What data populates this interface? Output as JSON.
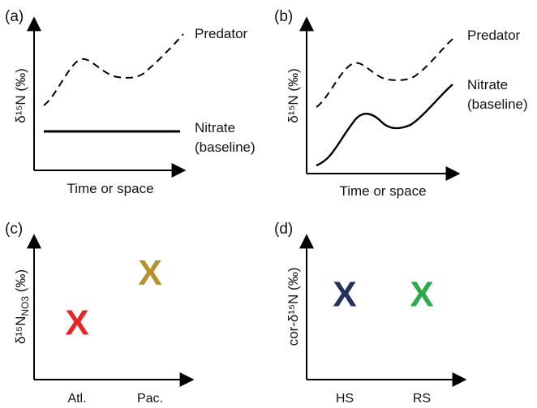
{
  "panels": {
    "a": {
      "label": "(a)",
      "ylabel": "δ¹⁵N (‰)",
      "xlabel": "Time or space",
      "curve_labels": {
        "predator": "Predator",
        "nitrate_line1": "Nitrate",
        "nitrate_line2": "(baseline)"
      }
    },
    "b": {
      "label": "(b)",
      "ylabel": "δ¹⁵N (‰)",
      "xlabel": "Time or space",
      "curve_labels": {
        "predator": "Predator",
        "nitrate_line1": "Nitrate",
        "nitrate_line2": "(baseline)"
      }
    },
    "c": {
      "label": "(c)",
      "ylabel_main": "δ¹⁵N",
      "ylabel_sub": "NO3",
      "ylabel_unit": " (‰)",
      "categories": [
        "Atl.",
        "Pac."
      ],
      "marker": "X"
    },
    "d": {
      "label": "(d)",
      "ylabel": "cor-δ¹⁵N (‰)",
      "categories": [
        "HS",
        "RS"
      ],
      "marker": "X"
    }
  },
  "chart_data": [
    {
      "type": "scatter",
      "panel": "c",
      "categories": [
        "Atl.",
        "Pac."
      ],
      "values": [
        0.4,
        0.75
      ],
      "colors": [
        "#e8262a",
        "#b8902a"
      ],
      "marker": "X"
    },
    {
      "type": "scatter",
      "panel": "d",
      "categories": [
        "HS",
        "RS"
      ],
      "values": [
        0.6,
        0.6
      ],
      "colors": [
        "#26325e",
        "#2aab4a"
      ],
      "marker": "X"
    }
  ],
  "colors": {
    "axis": "#000000",
    "atl": "#e8262a",
    "pac": "#b8902a",
    "hs": "#26325e",
    "rs": "#2aab4a",
    "hs_label": "#2a4aa0",
    "rs_label": "#2aab4a"
  }
}
